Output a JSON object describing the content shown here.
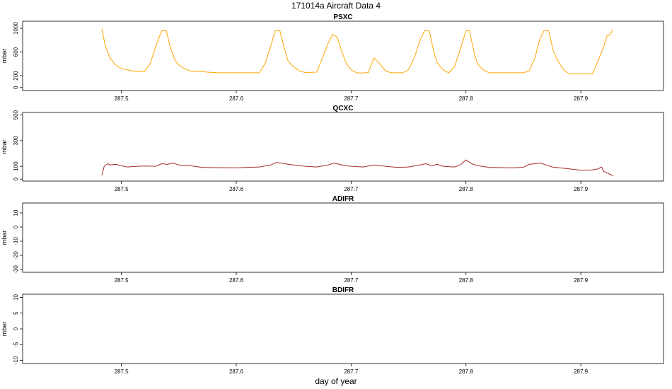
{
  "header": {
    "title": "171014a   Aircraft Data 4"
  },
  "footer": {
    "xlabel": "day of year"
  },
  "chart_data": [
    {
      "type": "line",
      "title": "PSXC",
      "ylabel": "mbar",
      "color": "#FFA500",
      "xlim": [
        287.414,
        287.972
      ],
      "ylim": [
        -50,
        1120
      ],
      "yticks": [
        0,
        200,
        600,
        1000
      ],
      "xticks": [
        287.5,
        287.6,
        287.7,
        287.8,
        287.9
      ],
      "series": [
        {
          "x": [
            287.483,
            287.486,
            287.49,
            287.495,
            287.5,
            287.505,
            287.51,
            287.515,
            287.52,
            287.525,
            287.53,
            287.535,
            287.539,
            287.543,
            287.547,
            287.55,
            287.555,
            287.56,
            287.565,
            287.57,
            287.575,
            287.58,
            287.585,
            287.6,
            287.615,
            287.62,
            287.625,
            287.63,
            287.634,
            287.638,
            287.642,
            287.645,
            287.65,
            287.655,
            287.66,
            287.67,
            287.675,
            287.68,
            287.684,
            287.688,
            287.692,
            287.696,
            287.7,
            287.705,
            287.71,
            287.715,
            287.72,
            287.725,
            287.73,
            287.735,
            287.74,
            287.745,
            287.75,
            287.755,
            287.76,
            287.764,
            287.768,
            287.772,
            287.775,
            287.78,
            287.785,
            287.79,
            287.796,
            287.8,
            287.803,
            287.807,
            287.81,
            287.815,
            287.82,
            287.83,
            287.85,
            287.855,
            287.86,
            287.864,
            287.868,
            287.872,
            287.876,
            287.88,
            287.885,
            287.89,
            287.91,
            287.915,
            287.92,
            287.923,
            287.925,
            287.928
          ],
          "values": [
            990,
            700,
            500,
            380,
            320,
            300,
            280,
            270,
            270,
            400,
            700,
            960,
            960,
            650,
            450,
            380,
            320,
            280,
            270,
            270,
            260,
            255,
            250,
            250,
            250,
            250,
            400,
            700,
            960,
            960,
            650,
            450,
            350,
            280,
            255,
            260,
            500,
            750,
            900,
            850,
            600,
            400,
            300,
            250,
            245,
            255,
            500,
            400,
            280,
            250,
            250,
            250,
            300,
            500,
            800,
            960,
            960,
            600,
            420,
            300,
            250,
            350,
            700,
            960,
            960,
            600,
            400,
            300,
            250,
            250,
            250,
            280,
            500,
            800,
            960,
            960,
            620,
            450,
            300,
            230,
            230,
            450,
            700,
            880,
            880,
            980
          ]
        }
      ]
    },
    {
      "type": "line",
      "title": "QCXC",
      "ylabel": "mbar",
      "color": "#A52A2A",
      "xlim": [
        287.414,
        287.972
      ],
      "ylim": [
        -15,
        520
      ],
      "yticks": [
        0,
        100,
        300,
        500
      ],
      "xticks": [
        287.5,
        287.6,
        287.7,
        287.8,
        287.9
      ],
      "series": [
        {
          "x": [
            287.483,
            287.485,
            287.488,
            287.49,
            287.495,
            287.5,
            287.505,
            287.51,
            287.52,
            287.53,
            287.535,
            287.54,
            287.545,
            287.55,
            287.56,
            287.57,
            287.58,
            287.6,
            287.62,
            287.63,
            287.635,
            287.64,
            287.645,
            287.65,
            287.66,
            287.67,
            287.68,
            287.685,
            287.69,
            287.695,
            287.7,
            287.71,
            287.72,
            287.73,
            287.74,
            287.75,
            287.76,
            287.765,
            287.77,
            287.775,
            287.78,
            287.79,
            287.795,
            287.8,
            287.805,
            287.81,
            287.82,
            287.83,
            287.84,
            287.85,
            287.855,
            287.86,
            287.865,
            287.87,
            287.875,
            287.88,
            287.89,
            287.9,
            287.91,
            287.915,
            287.918,
            287.92,
            287.925,
            287.928
          ],
          "values": [
            30,
            100,
            120,
            110,
            115,
            105,
            95,
            98,
            102,
            100,
            120,
            115,
            125,
            110,
            105,
            92,
            90,
            88,
            95,
            110,
            130,
            125,
            115,
            110,
            100,
            95,
            110,
            125,
            115,
            105,
            100,
            95,
            110,
            100,
            92,
            95,
            110,
            120,
            105,
            115,
            100,
            95,
            110,
            150,
            120,
            105,
            92,
            90,
            88,
            92,
            115,
            120,
            125,
            110,
            95,
            90,
            80,
            70,
            72,
            80,
            95,
            60,
            40,
            25
          ]
        }
      ]
    },
    {
      "type": "line",
      "title": "ADIFR",
      "ylabel": "mbar",
      "color": "#000000",
      "xlim": [
        287.414,
        287.972
      ],
      "ylim": [
        -32,
        17
      ],
      "yticks": [
        -30,
        -20,
        -10,
        0,
        10
      ],
      "xticks": [
        287.5,
        287.6,
        287.7,
        287.8,
        287.9
      ],
      "series": []
    },
    {
      "type": "line",
      "title": "BDIFR",
      "ylabel": "mbar",
      "color": "#000000",
      "xlim": [
        287.414,
        287.972
      ],
      "ylim": [
        -11,
        11
      ],
      "yticks": [
        -10,
        -5,
        0,
        5,
        10
      ],
      "xticks": [
        287.5,
        287.6,
        287.7,
        287.8,
        287.9
      ],
      "series": []
    }
  ]
}
